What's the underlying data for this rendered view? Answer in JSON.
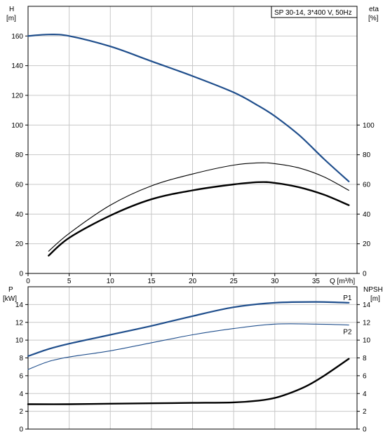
{
  "chart_data": [
    {
      "type": "line",
      "title": "SP 30-14, 3*400 V, 50Hz",
      "xlabel": "Q [m³/h]",
      "ylabel_left": [
        "H",
        "[m]"
      ],
      "ylabel_right": [
        "eta",
        "[%]"
      ],
      "xlim": [
        0,
        40
      ],
      "ylim_left": [
        0,
        180
      ],
      "ylim_right": [
        0,
        180
      ],
      "x_ticks": [
        "0",
        "5",
        "10",
        "15",
        "20",
        "25",
        "30",
        "35"
      ],
      "y_ticks_left": [
        "0",
        "20",
        "40",
        "60",
        "80",
        "100",
        "120",
        "140",
        "160"
      ],
      "y_ticks_right": [
        "0",
        "20",
        "40",
        "60",
        "80",
        "100"
      ],
      "grid": true,
      "series": [
        {
          "color": "#1f4e8c",
          "points": [
            [
              0,
              160
            ],
            [
              2.5,
              161
            ],
            [
              5,
              160
            ],
            [
              10,
              153
            ],
            [
              15,
              143
            ],
            [
              20,
              133
            ],
            [
              25,
              122
            ],
            [
              28,
              113
            ],
            [
              30,
              106
            ],
            [
              33,
              93
            ],
            [
              36,
              77
            ],
            [
              39,
              62
            ]
          ]
        },
        {
          "color": "#000000",
          "points": [
            [
              2.5,
              15
            ],
            [
              5,
              27
            ],
            [
              10,
              46
            ],
            [
              15,
              59
            ],
            [
              20,
              67
            ],
            [
              25,
              73
            ],
            [
              28,
              74.5
            ],
            [
              30,
              74
            ],
            [
              33,
              71
            ],
            [
              36,
              65
            ],
            [
              39,
              56
            ]
          ]
        },
        {
          "color": "#000000",
          "points": [
            [
              2.5,
              12
            ],
            [
              5,
              24
            ],
            [
              10,
              39
            ],
            [
              15,
              50
            ],
            [
              20,
              56
            ],
            [
              25,
              60
            ],
            [
              28,
              61.5
            ],
            [
              30,
              61
            ],
            [
              33,
              58
            ],
            [
              36,
              53
            ],
            [
              39,
              46
            ]
          ]
        }
      ]
    },
    {
      "type": "line",
      "xlim": [
        0,
        40
      ],
      "ylabel_left": [
        "P",
        "[kW]"
      ],
      "ylabel_right": [
        "NPSH",
        "[m]"
      ],
      "ylim_left": [
        0,
        16
      ],
      "ylim_right": [
        0,
        16
      ],
      "y_ticks_left": [
        "0",
        "2",
        "4",
        "6",
        "8",
        "10",
        "12",
        "14"
      ],
      "y_ticks_right": [
        "0",
        "2",
        "4",
        "6",
        "8",
        "10",
        "12",
        "14"
      ],
      "grid": true,
      "series": [
        {
          "name": "P1",
          "color": "#1f4e8c",
          "points": [
            [
              0,
              8.2
            ],
            [
              2.5,
              9
            ],
            [
              5,
              9.6
            ],
            [
              10,
              10.6
            ],
            [
              15,
              11.6
            ],
            [
              20,
              12.7
            ],
            [
              25,
              13.7
            ],
            [
              30,
              14.2
            ],
            [
              35,
              14.3
            ],
            [
              39,
              14.2
            ]
          ]
        },
        {
          "name": "P2",
          "color": "#1f4e8c",
          "points": [
            [
              0,
              6.7
            ],
            [
              2.5,
              7.6
            ],
            [
              5,
              8.1
            ],
            [
              10,
              8.8
            ],
            [
              15,
              9.7
            ],
            [
              20,
              10.6
            ],
            [
              25,
              11.3
            ],
            [
              30,
              11.8
            ],
            [
              35,
              11.8
            ],
            [
              39,
              11.7
            ]
          ]
        },
        {
          "color": "#000000",
          "points": [
            [
              0,
              2.8
            ],
            [
              5,
              2.8
            ],
            [
              10,
              2.85
            ],
            [
              15,
              2.9
            ],
            [
              20,
              2.95
            ],
            [
              25,
              3.0
            ],
            [
              28,
              3.2
            ],
            [
              30,
              3.5
            ],
            [
              32,
              4.1
            ],
            [
              34,
              4.9
            ],
            [
              36,
              6.0
            ],
            [
              39,
              7.9
            ]
          ]
        }
      ]
    }
  ]
}
